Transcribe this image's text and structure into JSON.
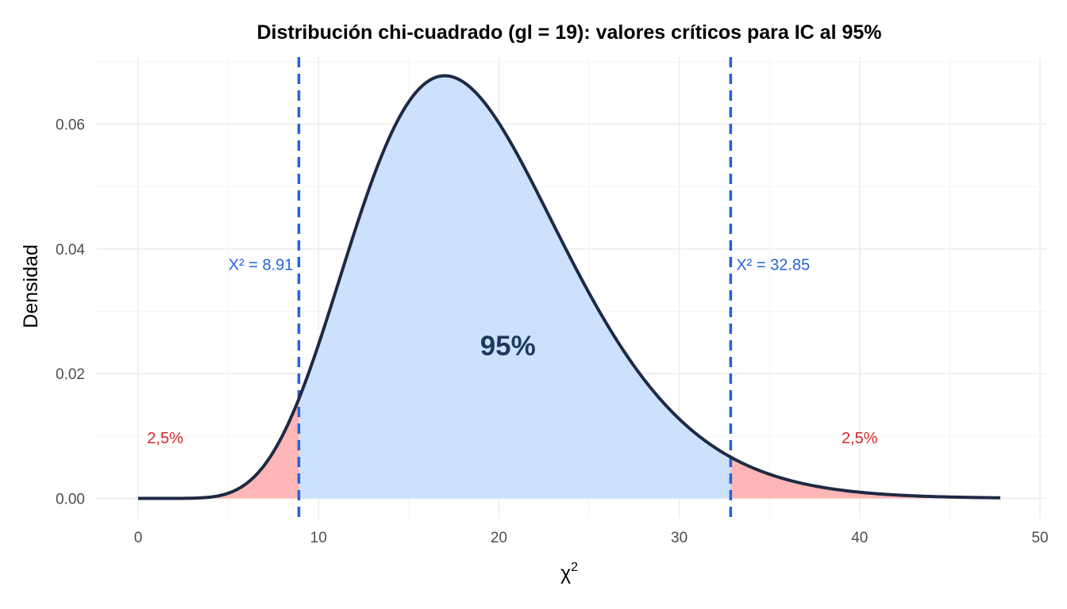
{
  "chart_data": {
    "type": "area",
    "title": "Distribución chi-cuadrado (gl = 19): valores críticos para IC al 95%",
    "xlabel": "χ",
    "xlabel_superscript": "2",
    "ylabel": "Densidad",
    "df": 19,
    "xlim": [
      0,
      50
    ],
    "ylim": [
      0,
      0.068
    ],
    "x_ticks": [
      0,
      10,
      20,
      30,
      40,
      50
    ],
    "x_tick_labels": [
      "0",
      "10",
      "20",
      "30",
      "40",
      "50"
    ],
    "y_ticks": [
      0,
      0.02,
      0.04,
      0.06
    ],
    "y_tick_labels": [
      "0.00",
      "0.02",
      "0.04",
      "0.06"
    ],
    "grid": true,
    "density_range": [
      0,
      47.8
    ],
    "critical_values": [
      {
        "x": 8.91,
        "label": "Χ² = 8.91",
        "label_y": 0.0375,
        "side": "left"
      },
      {
        "x": 32.85,
        "label": "Χ² = 32.85",
        "label_y": 0.0375,
        "side": "right"
      }
    ],
    "regions": [
      {
        "name": "lower-tail",
        "from": 0,
        "to": 8.91,
        "label": "2,5%",
        "label_x": 1.5,
        "label_y": 0.0097
      },
      {
        "name": "center",
        "from": 8.91,
        "to": 32.85,
        "label": "95%",
        "label_x": 20.5,
        "label_y": 0.0245
      },
      {
        "name": "upper-tail",
        "from": 32.85,
        "to": 47.8,
        "label": "2,5%",
        "label_x": 40,
        "label_y": 0.0097
      }
    ],
    "colors": {
      "tail_fill": "#ffb6b6",
      "center_fill": "#cce1fc",
      "curve": "#1e2a44",
      "critical_line": "#2563d9",
      "critical_text": "#2563d9",
      "tail_text": "#d62828",
      "center_text": "#1f3a5f"
    }
  }
}
